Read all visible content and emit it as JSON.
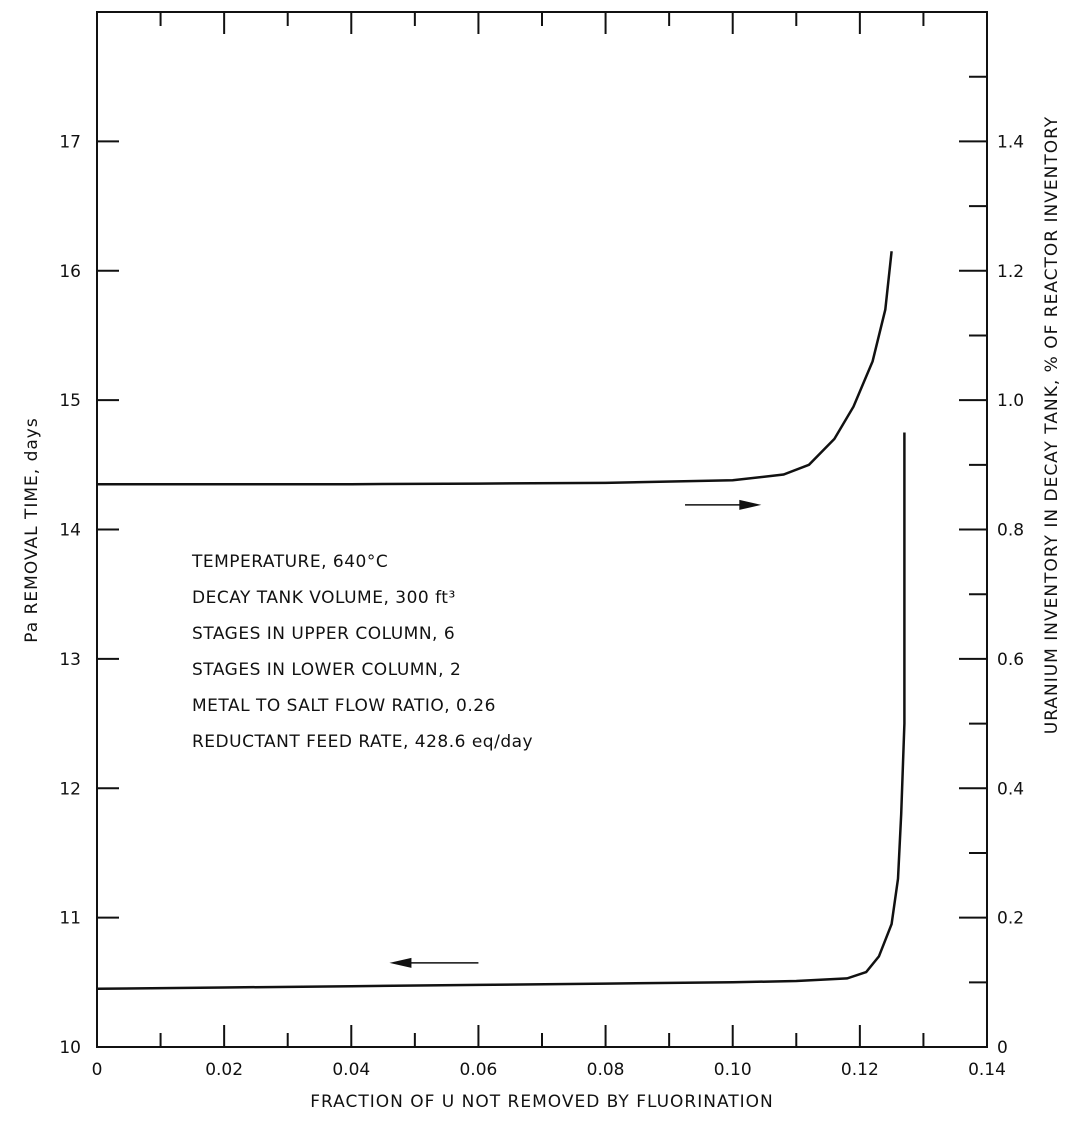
{
  "chart_data": {
    "type": "line",
    "xlabel": "FRACTION OF U NOT REMOVED BY FLUORINATION",
    "ylabel_left": "Pa REMOVAL TIME, days",
    "ylabel_right": "URANIUM INVENTORY IN DECAY TANK, % OF REACTOR INVENTORY",
    "xlim": [
      0,
      0.14
    ],
    "ylim_left": [
      10,
      18
    ],
    "ylim_right": [
      0,
      1.6
    ],
    "x_tick_labels": [
      "0",
      "0.02",
      "0.04",
      "0.06",
      "0.08",
      "0.10",
      "0.12",
      "0.14"
    ],
    "left_tick_labels": [
      "10",
      "11",
      "12",
      "13",
      "14",
      "15",
      "16",
      "17"
    ],
    "right_tick_labels": [
      "0",
      "0.2",
      "0.4",
      "0.6",
      "0.8",
      "1.0",
      "1.2",
      "1.4"
    ],
    "grid": false,
    "series": [
      {
        "axis": "left",
        "arrow": "left",
        "points": [
          [
            0,
            10.45
          ],
          [
            0.02,
            10.46
          ],
          [
            0.04,
            10.47
          ],
          [
            0.06,
            10.48
          ],
          [
            0.08,
            10.49
          ],
          [
            0.1,
            10.5
          ],
          [
            0.11,
            10.51
          ],
          [
            0.118,
            10.53
          ],
          [
            0.121,
            10.58
          ],
          [
            0.123,
            10.7
          ],
          [
            0.125,
            10.95
          ],
          [
            0.126,
            11.3
          ],
          [
            0.1265,
            11.8
          ],
          [
            0.127,
            12.5
          ],
          [
            0.127,
            13.5
          ],
          [
            0.127,
            14.75
          ]
        ]
      },
      {
        "axis": "right",
        "arrow": "right",
        "points": [
          [
            0,
            0.87
          ],
          [
            0.02,
            0.87
          ],
          [
            0.04,
            0.87
          ],
          [
            0.06,
            0.871
          ],
          [
            0.08,
            0.872
          ],
          [
            0.1,
            0.876
          ],
          [
            0.108,
            0.885
          ],
          [
            0.112,
            0.9
          ],
          [
            0.116,
            0.94
          ],
          [
            0.119,
            0.99
          ],
          [
            0.122,
            1.06
          ],
          [
            0.124,
            1.14
          ],
          [
            0.125,
            1.23
          ]
        ]
      }
    ],
    "annotations": [
      "TEMPERATURE, 640°C",
      "DECAY TANK VOLUME, 300 ft³",
      "STAGES IN UPPER COLUMN, 6",
      "STAGES IN LOWER COLUMN, 2",
      "METAL TO SALT FLOW RATIO, 0.26",
      "REDUCTANT FEED RATE, 428.6 eq/day"
    ]
  }
}
